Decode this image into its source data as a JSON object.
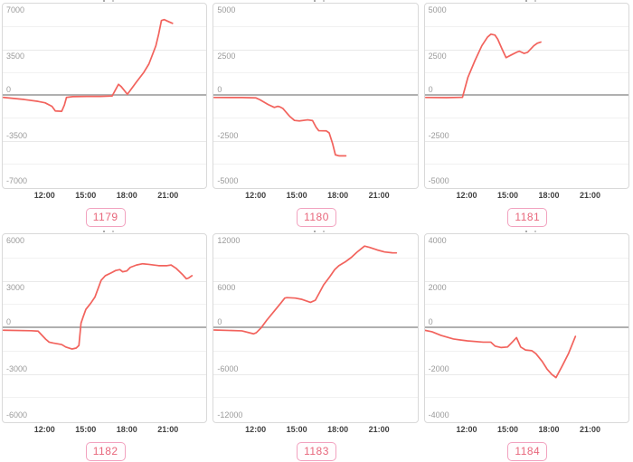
{
  "page": {
    "background": "#ffffff"
  },
  "colors": {
    "line": "#f2635d",
    "zero_axis": "#b0b0b0",
    "gridline_major": "#e9e9e9",
    "gridline_minor": "#f1f1f1",
    "panel_border": "#d9d9d9",
    "y_label_text": "#9a9a9a",
    "x_label_text": "#404040",
    "badge_text": "#e8677c",
    "badge_border": "#f2a2bf",
    "badge_background": "#fffdfe"
  },
  "x_axis": {
    "tick_labels": [
      "12:00",
      "15:00",
      "18:00",
      "21:00"
    ],
    "tick_hours": [
      12,
      15,
      18,
      21
    ],
    "domain_hours": [
      8.95,
      23.65
    ]
  },
  "chart_data": [
    {
      "type": "line",
      "badge": "1179",
      "ylim": [
        -7000,
        7000
      ],
      "y_tick_values": [
        7000,
        3500,
        0,
        -3500,
        -7000
      ],
      "y_tick_labels": [
        "7000",
        "3500",
        "0",
        "-3500",
        "-7000"
      ],
      "x_tick_labels": [
        "12:00",
        "15:00",
        "18:00",
        "21:00"
      ],
      "series": [
        [
          9.0,
          -120
        ],
        [
          10.5,
          -280
        ],
        [
          11.5,
          -420
        ],
        [
          12.0,
          -530
        ],
        [
          12.5,
          -800
        ],
        [
          12.75,
          -1150
        ],
        [
          13.2,
          -1175
        ],
        [
          13.4,
          -700
        ],
        [
          13.55,
          -120
        ],
        [
          14.0,
          -60
        ],
        [
          15.0,
          -40
        ],
        [
          16.0,
          -40
        ],
        [
          16.85,
          -10
        ],
        [
          17.3,
          875
        ],
        [
          17.5,
          700
        ],
        [
          17.95,
          120
        ],
        [
          18.6,
          1050
        ],
        [
          19.1,
          1740
        ],
        [
          19.5,
          2420
        ],
        [
          20.0,
          3800
        ],
        [
          20.2,
          4700
        ],
        [
          20.4,
          5720
        ],
        [
          20.6,
          5790
        ],
        [
          20.9,
          5640
        ],
        [
          21.2,
          5500
        ]
      ]
    },
    {
      "type": "line",
      "badge": "1180",
      "ylim": [
        -5000,
        5000
      ],
      "y_tick_values": [
        5000,
        2500,
        0,
        -2500,
        -5000
      ],
      "y_tick_labels": [
        "5000",
        "2500",
        "0",
        "-2500",
        "-5000"
      ],
      "x_tick_labels": [
        "12:00",
        "15:00",
        "18:00",
        "21:00"
      ],
      "series": [
        [
          9.0,
          -90
        ],
        [
          11.0,
          -95
        ],
        [
          12.0,
          -110
        ],
        [
          12.3,
          -210
        ],
        [
          12.9,
          -470
        ],
        [
          13.35,
          -630
        ],
        [
          13.6,
          -570
        ],
        [
          13.75,
          -600
        ],
        [
          13.95,
          -680
        ],
        [
          14.45,
          -1110
        ],
        [
          14.8,
          -1330
        ],
        [
          15.15,
          -1360
        ],
        [
          15.75,
          -1300
        ],
        [
          16.1,
          -1340
        ],
        [
          16.35,
          -1700
        ],
        [
          16.55,
          -1890
        ],
        [
          17.1,
          -1900
        ],
        [
          17.3,
          -2010
        ],
        [
          17.55,
          -2600
        ],
        [
          17.75,
          -3200
        ],
        [
          18.0,
          -3250
        ],
        [
          18.5,
          -3250
        ]
      ]
    },
    {
      "type": "line",
      "badge": "1181",
      "ylim": [
        -5000,
        5000
      ],
      "y_tick_values": [
        5000,
        2500,
        0,
        -2500,
        -5000
      ],
      "y_tick_labels": [
        "5000",
        "2500",
        "0",
        "-2500",
        "-5000"
      ],
      "x_tick_labels": [
        "12:00",
        "15:00",
        "18:00",
        "21:00"
      ],
      "series": [
        [
          9.0,
          -90
        ],
        [
          10.5,
          -100
        ],
        [
          11.65,
          -80
        ],
        [
          12.05,
          1010
        ],
        [
          12.55,
          1905
        ],
        [
          13.05,
          2720
        ],
        [
          13.45,
          3180
        ],
        [
          13.7,
          3340
        ],
        [
          14.0,
          3290
        ],
        [
          14.2,
          3070
        ],
        [
          14.5,
          2550
        ],
        [
          14.8,
          2070
        ],
        [
          15.2,
          2230
        ],
        [
          15.55,
          2360
        ],
        [
          15.75,
          2420
        ],
        [
          16.1,
          2300
        ],
        [
          16.35,
          2360
        ],
        [
          16.8,
          2720
        ],
        [
          17.05,
          2850
        ],
        [
          17.3,
          2915
        ]
      ]
    },
    {
      "type": "line",
      "badge": "1182",
      "ylim": [
        -6000,
        6000
      ],
      "y_tick_values": [
        6000,
        3000,
        0,
        -3000,
        -6000
      ],
      "y_tick_labels": [
        "6000",
        "3000",
        "0",
        "-3000",
        "-6000"
      ],
      "x_tick_labels": [
        "12:00",
        "15:00",
        "18:00",
        "21:00"
      ],
      "series": [
        [
          9.0,
          -130
        ],
        [
          11.0,
          -165
        ],
        [
          11.5,
          -185
        ],
        [
          12.05,
          -700
        ],
        [
          12.3,
          -890
        ],
        [
          12.6,
          -950
        ],
        [
          13.2,
          -1040
        ],
        [
          13.5,
          -1200
        ],
        [
          13.95,
          -1330
        ],
        [
          14.25,
          -1270
        ],
        [
          14.45,
          -1100
        ],
        [
          14.6,
          320
        ],
        [
          14.75,
          715
        ],
        [
          14.95,
          1200
        ],
        [
          15.3,
          1590
        ],
        [
          15.6,
          1980
        ],
        [
          16.05,
          3050
        ],
        [
          16.35,
          3350
        ],
        [
          16.8,
          3540
        ],
        [
          17.1,
          3680
        ],
        [
          17.4,
          3740
        ],
        [
          17.6,
          3600
        ],
        [
          17.9,
          3650
        ],
        [
          18.15,
          3880
        ],
        [
          18.6,
          4030
        ],
        [
          19.05,
          4110
        ],
        [
          19.5,
          4070
        ],
        [
          20.2,
          3990
        ],
        [
          20.8,
          3990
        ],
        [
          21.1,
          4030
        ],
        [
          21.45,
          3830
        ],
        [
          21.9,
          3440
        ],
        [
          22.2,
          3150
        ],
        [
          22.35,
          3200
        ],
        [
          22.6,
          3350
        ]
      ]
    },
    {
      "type": "line",
      "badge": "1183",
      "ylim": [
        -12000,
        12000
      ],
      "y_tick_values": [
        12000,
        6000,
        0,
        -6000,
        -12000
      ],
      "y_tick_labels": [
        "12000",
        "6000",
        "0",
        "-6000",
        "-12000"
      ],
      "x_tick_labels": [
        "12:00",
        "15:00",
        "18:00",
        "21:00"
      ],
      "series": [
        [
          9.0,
          -230
        ],
        [
          11.0,
          -340
        ],
        [
          11.85,
          -720
        ],
        [
          12.05,
          -570
        ],
        [
          12.4,
          60
        ],
        [
          12.8,
          1030
        ],
        [
          13.35,
          2200
        ],
        [
          13.8,
          3180
        ],
        [
          14.1,
          3840
        ],
        [
          14.25,
          3900
        ],
        [
          14.85,
          3840
        ],
        [
          15.3,
          3690
        ],
        [
          15.95,
          3300
        ],
        [
          16.3,
          3570
        ],
        [
          16.6,
          4540
        ],
        [
          16.9,
          5520
        ],
        [
          17.35,
          6580
        ],
        [
          17.7,
          7470
        ],
        [
          18.0,
          7980
        ],
        [
          18.45,
          8450
        ],
        [
          18.9,
          9030
        ],
        [
          19.3,
          9690
        ],
        [
          19.65,
          10200
        ],
        [
          19.85,
          10470
        ],
        [
          20.2,
          10320
        ],
        [
          20.75,
          10000
        ],
        [
          21.3,
          9730
        ],
        [
          21.85,
          9620
        ],
        [
          22.15,
          9610
        ]
      ]
    },
    {
      "type": "line",
      "badge": "1184",
      "ylim": [
        -4000,
        4000
      ],
      "y_tick_values": [
        4000,
        2000,
        0,
        -2000,
        -4000
      ],
      "y_tick_labels": [
        "4000",
        "2000",
        "0",
        "-2000",
        "-4000"
      ],
      "x_tick_labels": [
        "12:00",
        "15:00",
        "18:00",
        "21:00"
      ],
      "series": [
        [
          8.95,
          -90
        ],
        [
          9.45,
          -150
        ],
        [
          10.1,
          -305
        ],
        [
          11.0,
          -460
        ],
        [
          12.0,
          -540
        ],
        [
          13.15,
          -595
        ],
        [
          13.7,
          -595
        ],
        [
          14.0,
          -760
        ],
        [
          14.45,
          -825
        ],
        [
          14.9,
          -800
        ],
        [
          15.3,
          -560
        ],
        [
          15.55,
          -400
        ],
        [
          15.85,
          -800
        ],
        [
          16.2,
          -930
        ],
        [
          16.65,
          -955
        ],
        [
          16.95,
          -1085
        ],
        [
          17.4,
          -1410
        ],
        [
          17.75,
          -1735
        ],
        [
          18.1,
          -1970
        ],
        [
          18.4,
          -2100
        ],
        [
          18.85,
          -1605
        ],
        [
          19.3,
          -1085
        ],
        [
          19.8,
          -350
        ]
      ]
    }
  ]
}
